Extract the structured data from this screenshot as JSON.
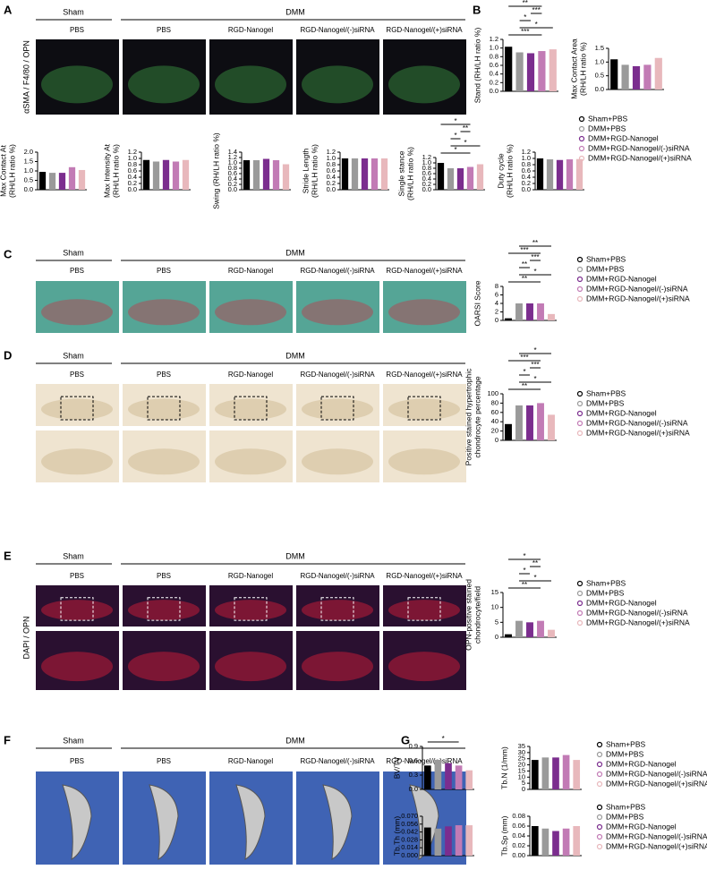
{
  "panel_labels": [
    "A",
    "B",
    "C",
    "D",
    "E",
    "F",
    "G"
  ],
  "image_panels": [
    {
      "headers": [
        "Sham",
        "DMM"
      ],
      "columns": [
        "PBS",
        "PBS",
        "RGD-Nanogel",
        "RGD-Nanogel/(-)siRNA",
        "RGD-Nanogel/(+)siRNA"
      ],
      "side_label": "αSMA / F4/80 / OPN"
    },
    {
      "headers": [
        "Sham",
        "DMM"
      ],
      "columns": [
        "PBS",
        "PBS",
        "RGD-Nanogel",
        "RGD-Nanogel/(-)siRNA",
        "RGD-Nanogel/(+)siRNA"
      ]
    },
    {
      "headers": [
        "Sham",
        "DMM"
      ],
      "columns": [
        "PBS",
        "PBS",
        "RGD-Nanogel",
        "RGD-Nanogel/(-)siRNA",
        "RGD-Nanogel/(+)siRNA"
      ]
    },
    {
      "headers": [
        "Sham",
        "DMM"
      ],
      "columns": [
        "PBS",
        "PBS",
        "RGD-Nanogel",
        "RGD-Nanogel/(-)siRNA",
        "RGD-Nanogel/(+)siRNA"
      ],
      "side_label": "DAPI / OPN"
    },
    {
      "headers": [
        "Sham",
        "DMM"
      ],
      "columns": [
        "PBS",
        "PBS",
        "RGD-Nanogel",
        "RGD-Nanogel/(-)siRNA",
        "RGD-Nanogel/(+)siRNA"
      ]
    }
  ],
  "groups": {
    "names": [
      "Sham+PBS",
      "DMM+PBS",
      "DMM+RGD-Nanogel",
      "DMM+RGD-Nanogel/(-)siRNA",
      "DMM+RGD-Nanogel/(+)siRNA"
    ],
    "colors": [
      "#000000",
      "#9a9a9a",
      "#7b2d8e",
      "#c27bb5",
      "#e8b8bc"
    ]
  },
  "chart_data": [
    {
      "type": "bar",
      "ylabel": [
        "Stand (RH/LH ratio %)"
      ],
      "values": [
        1.03,
        0.9,
        0.88,
        0.93,
        0.97
      ],
      "ylim": [
        0,
        1.2
      ],
      "yticks": [
        {
          "value": 0,
          "label": "0.0"
        },
        0.2,
        0.4,
        0.6,
        0.8,
        {
          "value": 1,
          "label": "1.0"
        },
        1.2
      ],
      "annotations": [
        "***",
        "*",
        "*",
        "***",
        "**"
      ]
    },
    {
      "type": "bar",
      "ylabel": [
        "Max Contact Area",
        "(RH/LH ratio %)"
      ],
      "values": [
        1.1,
        0.9,
        0.85,
        0.9,
        1.15
      ],
      "ylim": [
        0,
        1.5
      ],
      "yticks": [
        {
          "value": 0,
          "label": "0.0"
        },
        0.5,
        {
          "value": 1,
          "label": "1.0"
        },
        1.5
      ],
      "annotations": []
    },
    {
      "type": "bar",
      "ylabel": [
        "Max Contact At",
        "(RH/LH ratio %)"
      ],
      "values": [
        0.95,
        0.9,
        0.9,
        1.2,
        1.05
      ],
      "ylim": [
        0,
        2
      ],
      "yticks": [
        {
          "value": 0,
          "label": "0.0"
        },
        0.5,
        {
          "value": 1,
          "label": "1.0"
        },
        1.5,
        {
          "value": 2,
          "label": "2.0"
        }
      ],
      "annotations": []
    },
    {
      "type": "bar",
      "ylabel": [
        "Max Intensity At",
        "(RH/LH ratio %)"
      ],
      "values": [
        0.95,
        0.9,
        0.95,
        0.9,
        0.95
      ],
      "ylim": [
        0,
        1.2
      ],
      "yticks": [
        {
          "value": 0,
          "label": "0.0"
        },
        0.2,
        0.4,
        0.6,
        0.8,
        {
          "value": 1,
          "label": "1.0"
        },
        1.2
      ],
      "annotations": []
    },
    {
      "type": "bar",
      "ylabel": [
        "Swing (RH/LH ratio %)"
      ],
      "values": [
        1.1,
        1.1,
        1.15,
        1.1,
        0.95
      ],
      "ylim": [
        0,
        1.4
      ],
      "yticks": [
        {
          "value": 0,
          "label": "0.0"
        },
        0.2,
        0.4,
        0.6,
        0.8,
        {
          "value": 1,
          "label": "1.0"
        },
        1.2,
        1.4
      ],
      "annotations": []
    },
    {
      "type": "bar",
      "ylabel": [
        "Stride Length",
        "(RH/LH ratio %)"
      ],
      "values": [
        1.0,
        1.0,
        1.0,
        1.0,
        1.0
      ],
      "ylim": [
        0,
        1.2
      ],
      "yticks": [
        {
          "value": 0,
          "label": "0.0"
        },
        0.2,
        0.4,
        0.6,
        0.8,
        {
          "value": 1,
          "label": "1.0"
        },
        1.2
      ],
      "annotations": []
    },
    {
      "type": "bar",
      "ylabel": [
        "Single stance",
        "(RH/LH ratio %)"
      ],
      "values": [
        1.0,
        0.8,
        0.8,
        0.85,
        0.95
      ],
      "ylim": [
        0,
        1.2
      ],
      "yticks": [
        {
          "value": 0,
          "label": "0.0"
        },
        0.2,
        0.4,
        0.6,
        0.8,
        {
          "value": 1,
          "label": "1.0"
        },
        1.2
      ],
      "annotations": [
        "*",
        "*",
        "*",
        "**",
        "*"
      ]
    },
    {
      "type": "bar",
      "ylabel": [
        "Duty cycle",
        "(RH/LH ratio %)"
      ],
      "values": [
        1.0,
        0.97,
        0.95,
        0.97,
        0.98
      ],
      "ylim": [
        0,
        1.2
      ],
      "yticks": [
        {
          "value": 0,
          "label": "0.0"
        },
        0.2,
        0.4,
        0.6,
        0.8,
        {
          "value": 1,
          "label": "1.0"
        },
        1.2
      ],
      "annotations": []
    },
    {
      "type": "bar",
      "ylabel": [
        "OARSI Score"
      ],
      "values": [
        0.5,
        4,
        4,
        4,
        1.5
      ],
      "ylim": [
        0,
        8
      ],
      "yticks": [
        0,
        2,
        4,
        6,
        8
      ],
      "annotations": [
        "**",
        "*",
        "**",
        "***",
        "***",
        "**"
      ]
    },
    {
      "type": "bar",
      "ylabel": [
        "Positive stained hypertrophic",
        "chondrocyte percentage"
      ],
      "values": [
        35,
        75,
        75,
        80,
        55
      ],
      "ylim": [
        0,
        100
      ],
      "yticks": [
        0,
        20,
        40,
        60,
        80,
        100
      ],
      "annotations": [
        "**",
        "*",
        "*",
        "***",
        "***",
        "*"
      ]
    },
    {
      "type": "bar",
      "ylabel": [
        "OPN-positive stained",
        "chondrocyte/field"
      ],
      "values": [
        1,
        5.5,
        5,
        5.5,
        2.5
      ],
      "ylim": [
        0,
        15
      ],
      "yticks": [
        0,
        5,
        10,
        15
      ],
      "annotations": [
        "**",
        "*",
        "*",
        "**",
        "*"
      ]
    },
    {
      "type": "bar",
      "ylabel": [
        "BV/TV"
      ],
      "values": [
        0.5,
        0.62,
        0.55,
        0.5,
        0.4
      ],
      "ylim": [
        0,
        0.9
      ],
      "yticks": [
        {
          "value": 0,
          "label": "0.0"
        },
        0.3,
        0.6,
        0.9
      ],
      "annotations": [
        "*"
      ]
    },
    {
      "type": "bar",
      "ylabel": [
        "Tb.N (1/mm)"
      ],
      "values": [
        24,
        26,
        26,
        28,
        24
      ],
      "ylim": [
        0,
        35
      ],
      "yticks": [
        0,
        5,
        10,
        15,
        20,
        25,
        30,
        35
      ],
      "annotations": []
    },
    {
      "type": "bar",
      "ylabel": [
        "Tb.Th (mm)"
      ],
      "values": [
        0.05,
        0.048,
        0.052,
        0.054,
        0.054
      ],
      "ylim": [
        0,
        0.07
      ],
      "yticks": [
        {
          "value": 0,
          "label": "0.000"
        },
        0.014,
        0.028,
        0.042,
        0.056,
        {
          "value": 0.07,
          "label": "0.070"
        }
      ],
      "annotations": []
    },
    {
      "type": "bar",
      "ylabel": [
        "Tb.Sp (mm)"
      ],
      "values": [
        0.06,
        0.055,
        0.05,
        0.055,
        0.06
      ],
      "ylim": [
        0,
        0.08
      ],
      "yticks": [
        {
          "value": 0,
          "label": "0.00"
        },
        0.02,
        0.04,
        0.06,
        0.08
      ],
      "annotations": []
    }
  ]
}
